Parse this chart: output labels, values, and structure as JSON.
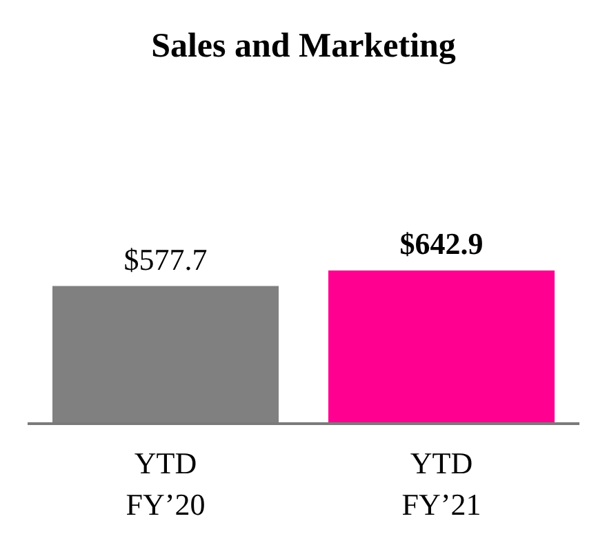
{
  "chart_data": {
    "type": "bar",
    "title": "Sales and Marketing",
    "categories": [
      "YTD\nFY’20",
      "YTD\nFY’21"
    ],
    "values": [
      577.7,
      642.9
    ],
    "colors": [
      "#808080",
      "#ff0090"
    ],
    "value_labels": [
      "$577.7",
      "$642.9"
    ],
    "grid": false
  }
}
